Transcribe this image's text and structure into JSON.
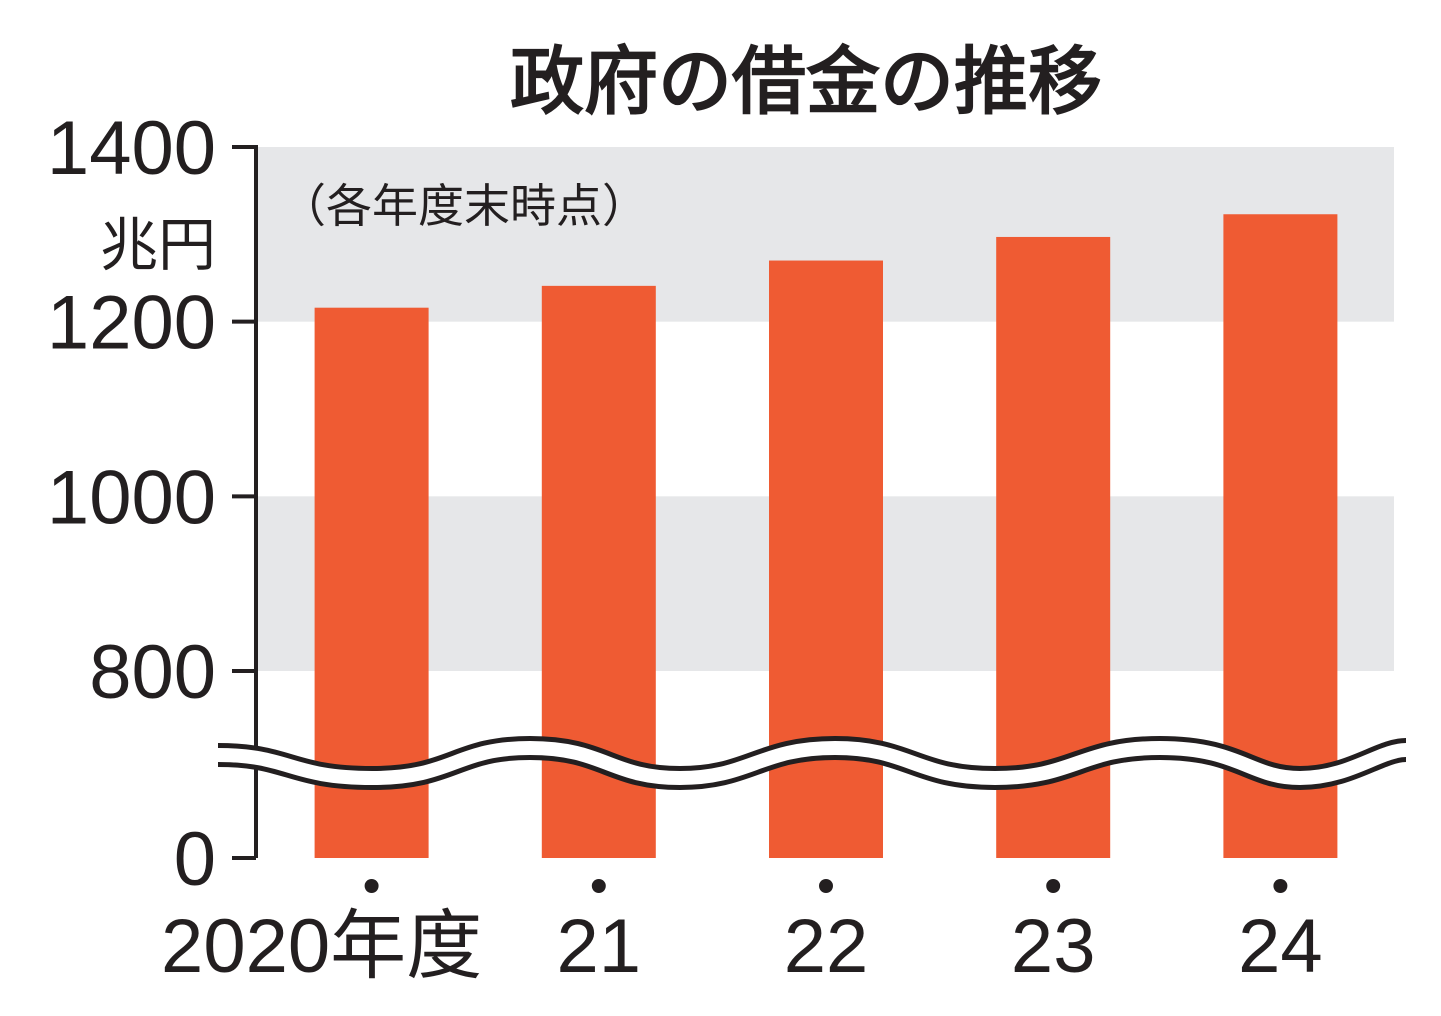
{
  "chart_data": {
    "type": "bar",
    "title": "政府の借金の推移",
    "subtitle": "（各年度末時点）",
    "unit": "兆円",
    "categories": [
      "2020年度",
      "21",
      "22",
      "23",
      "24"
    ],
    "values": [
      1216,
      1241,
      1270,
      1297,
      1323
    ],
    "y_ticks": [
      0,
      800,
      1000,
      1200,
      1400
    ],
    "ylim": [
      800,
      1400
    ],
    "axis_break": true,
    "colors": {
      "bar": "#ef5b33",
      "band": "#e6e7e9",
      "axis": "#231f20"
    }
  }
}
